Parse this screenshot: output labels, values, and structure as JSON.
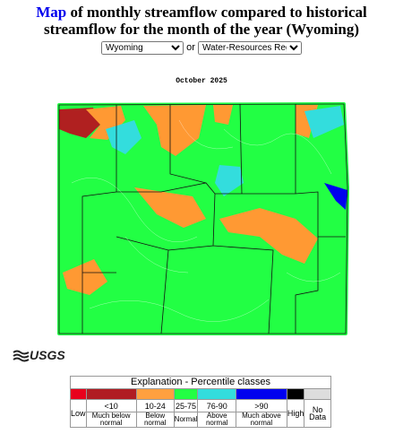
{
  "header": {
    "title_link": "Map",
    "title_text": "of monthly streamflow compared to historical streamflow for the month of the year (Wyoming)"
  },
  "controls": {
    "state_select": "Wyoming",
    "separator": "or",
    "region_select": "Water-Resources Regions"
  },
  "map": {
    "title": "October 2025"
  },
  "logo": {
    "text": "USGS"
  },
  "legend": {
    "title": "Explanation - Percentile classes",
    "low": "Low",
    "high": "High",
    "no_data": "No Data",
    "classes": [
      "<10",
      "10-24",
      "25-75",
      "76-90",
      ">90"
    ],
    "descriptions": [
      "Much below normal",
      "Below normal",
      "Normal",
      "Above normal",
      "Much above normal"
    ]
  }
}
